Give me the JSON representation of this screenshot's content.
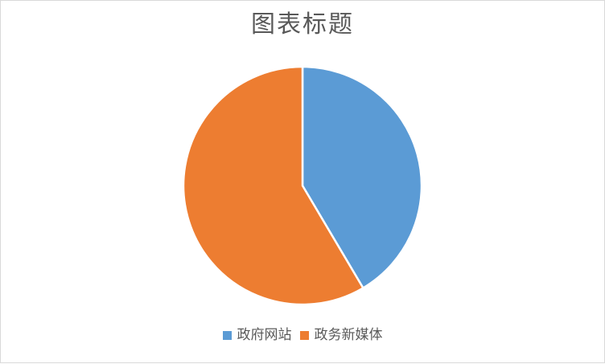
{
  "frame": {
    "background_color": "#FFFFFF",
    "border_color": "#D9D9D9"
  },
  "chart_data": {
    "type": "pie",
    "title": "图表标题",
    "title_color": "#595959",
    "categories": [
      "政府网站",
      "政务新媒体"
    ],
    "values": [
      41.5,
      58.5
    ],
    "unit": "percent (estimated from slice angles)",
    "colors": [
      "#5B9BD5",
      "#ED7D31"
    ],
    "slice_border_color": "#FFFFFF",
    "start_angle_deg": 0,
    "direction": "clockwise",
    "grid": "off",
    "legend_position": "bottom",
    "legend_text_color": "#595959"
  }
}
